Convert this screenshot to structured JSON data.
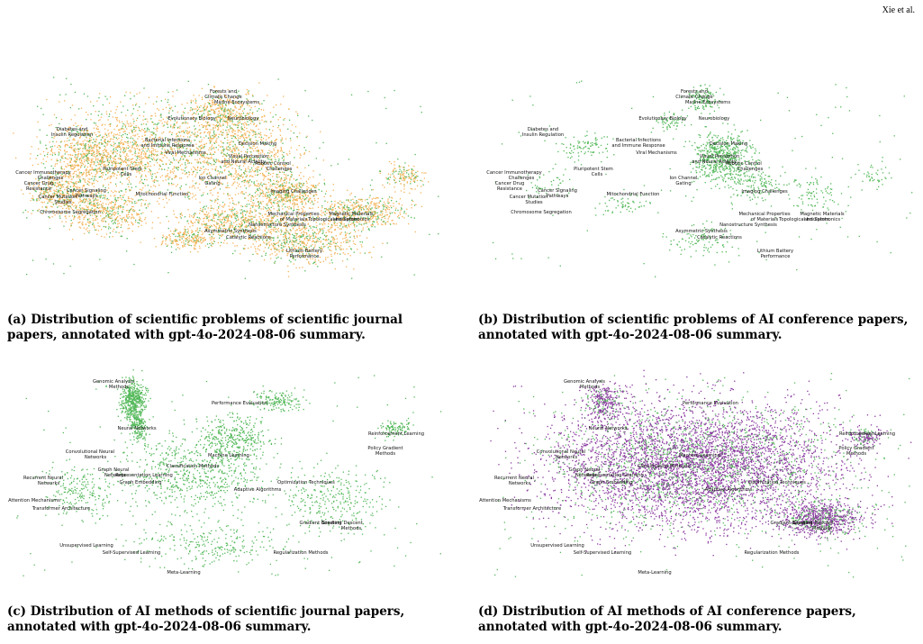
{
  "header": {
    "author": "Xie et al."
  },
  "colors": {
    "journal": "#f5b45a",
    "ai": "#55b95b",
    "ai_method_conf": "#8a3aa0"
  },
  "panels": [
    {
      "id": "a",
      "caption": "(a) Distribution of scientific problems of scientific journal papers, annotated with gpt-4o-2024-08-06 summary.",
      "palette": [
        "#f5b45a",
        "#55b95b"
      ],
      "labels": [
        "Forests and",
        "Climate Change",
        "Marine Ecosystems",
        "Evolutionary Biology",
        "Neurobiology",
        "Diabetes and",
        "Insulin Regulation",
        "Bacterial Infections",
        "and Immune Response",
        "Viral Mechanisms",
        "Decision Making",
        "Cancer Immunotherapy",
        "Challenges",
        "Cancer Drug",
        "Resistance",
        "Cancer Mutation",
        "Studies",
        "Cancer Signaling",
        "Pathways",
        "Pluripotent Stem",
        "Cells",
        "Ion Channel",
        "Gating",
        "Visual Perception",
        "and Neural Activity",
        "Robotic Control",
        "Challenges",
        "Mitochondrial Function",
        "Chromosome Segregation",
        "Imaging Challenges",
        "Mechanical Properties",
        "of Materials",
        "Topological Insulators",
        "Magnetic Materials",
        "and Spintronics",
        "Nanostructure Synthesis",
        "Asymmetric Synthesis",
        "Catalytic Reactions",
        "Lithium Battery",
        "Performance"
      ]
    },
    {
      "id": "b",
      "caption": "(b) Distribution of scientific problems of AI conference papers, annotated with gpt-4o-2024-08-06 summary.",
      "palette": [
        "#55b95b"
      ],
      "labels": [
        "Forests and",
        "Climate Change",
        "Marine Ecosystems",
        "Evolutionary Biology",
        "Neurobiology",
        "Diabetes and",
        "Insulin Regulation",
        "Bacterial Infections",
        "and Immune Response",
        "Viral Mechanisms",
        "Decision Making",
        "Cancer Immunotherapy",
        "Challenges",
        "Cancer Drug",
        "Resistance",
        "Cancer Mutation",
        "Studies",
        "Cancer Signaling",
        "Pathways",
        "Pluripotent Stem",
        "Cells",
        "Ion Channel",
        "Gating",
        "Visual Perception",
        "and Neural Activity",
        "Robotic Control",
        "Challenges",
        "Mitochondrial Function",
        "Chromosome Segregation",
        "Imaging Challenges",
        "Mechanical Properties",
        "of Materials",
        "Topological Insulators",
        "Magnetic Materials",
        "and Spintronics",
        "Nanostructure Synthesis",
        "Asymmetric Synthesis",
        "Catalytic Reactions",
        "Lithium Battery",
        "Performance"
      ]
    },
    {
      "id": "c",
      "caption": "(c) Distribution of AI methods of scientific journal papers, annotated with gpt-4o-2024-08-06 summary.",
      "palette": [
        "#55b95b"
      ],
      "labels": [
        "Genomic Analysis",
        "Methods",
        "Performance Evaluation",
        "Reinforcement Learning",
        "Neural Networks",
        "Policy Gradient",
        "Methods",
        "Convolutional Neural",
        "Networks",
        "Machine Learning",
        "Classification Methods",
        "Graph Neural",
        "Networks",
        "Representation Learning",
        "Graph Embedding",
        "Recurrent Neural",
        "Networks",
        "Optimization Techniques",
        "Adaptive Algorithms",
        "Attention Mechanisms",
        "Transformer Architecture",
        "Gradient Boosting",
        "Gradient Descent",
        "Methods",
        "Unsupervised Learning",
        "Self-Supervised Learning",
        "Regularization Methods",
        "Meta-Learning"
      ]
    },
    {
      "id": "d",
      "caption": "(d) Distribution of AI methods of AI conference papers, annotated with gpt-4o-2024-08-06 summary.",
      "palette": [
        "#8a3aa0",
        "#55b95b"
      ],
      "labels": [
        "Genomic Analysis",
        "Methods",
        "Performance Evaluation",
        "Reinforcement Learning",
        "Neural Networks",
        "Policy Gradient",
        "Methods",
        "Convolutional Neural",
        "Networks",
        "Machine Learning",
        "Classification Methods",
        "Graph Neural",
        "Networks",
        "Representation Learning",
        "Graph Embedding",
        "Recurrent Neural",
        "Networks",
        "Optimization Techniques",
        "Adaptive Algorithms",
        "Attention Mechanisms",
        "Transformer Architecture",
        "Gradient Boosting",
        "Gradient Descent",
        "Methods",
        "Unsupervised Learning",
        "Self-Supervised Learning",
        "Regularization Methods",
        "Meta-Learning"
      ]
    }
  ]
}
